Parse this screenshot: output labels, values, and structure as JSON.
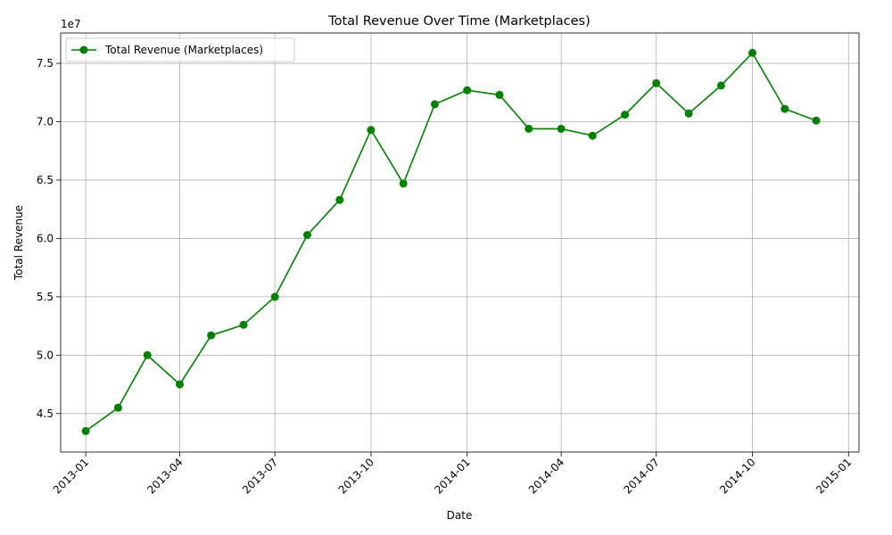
{
  "chart_data": {
    "type": "line",
    "title": "Total Revenue Over Time (Marketplaces)",
    "xlabel": "Date",
    "ylabel": "Total Revenue",
    "y_offset_label": "1e7",
    "y_scale_factor": 10000000,
    "grid": true,
    "legend_position": "upper-left",
    "x_ticks": [
      "2013-01",
      "2013-04",
      "2013-07",
      "2013-10",
      "2014-01",
      "2014-04",
      "2014-07",
      "2014-10",
      "2015-01"
    ],
    "y_ticks": [
      "4.5",
      "5.0",
      "5.5",
      "6.0",
      "6.5",
      "7.0",
      "7.5"
    ],
    "y_tick_values": [
      45000000,
      50000000,
      55000000,
      60000000,
      65000000,
      70000000,
      75000000
    ],
    "xlim": [
      "2012-12-08",
      "2015-01-11"
    ],
    "ylim": [
      41700000,
      77600000
    ],
    "series": [
      {
        "name": "Total Revenue (Marketplaces)",
        "color": "#008000",
        "x": [
          "2013-01-01",
          "2013-02-01",
          "2013-03-01",
          "2013-04-01",
          "2013-05-01",
          "2013-06-01",
          "2013-07-01",
          "2013-08-01",
          "2013-09-01",
          "2013-10-01",
          "2013-11-01",
          "2013-12-01",
          "2014-01-01",
          "2014-02-01",
          "2014-03-01",
          "2014-04-01",
          "2014-05-01",
          "2014-06-01",
          "2014-07-01",
          "2014-08-01",
          "2014-09-01",
          "2014-10-01",
          "2014-11-01",
          "2014-12-01"
        ],
        "y": [
          43500000,
          45500000,
          50000000,
          47500000,
          51700000,
          52600000,
          55000000,
          60300000,
          63300000,
          69300000,
          64700000,
          71500000,
          72700000,
          72300000,
          69400000,
          69400000,
          68800000,
          70600000,
          73300000,
          70700000,
          73100000,
          75900000,
          71100000,
          70100000
        ]
      }
    ]
  }
}
